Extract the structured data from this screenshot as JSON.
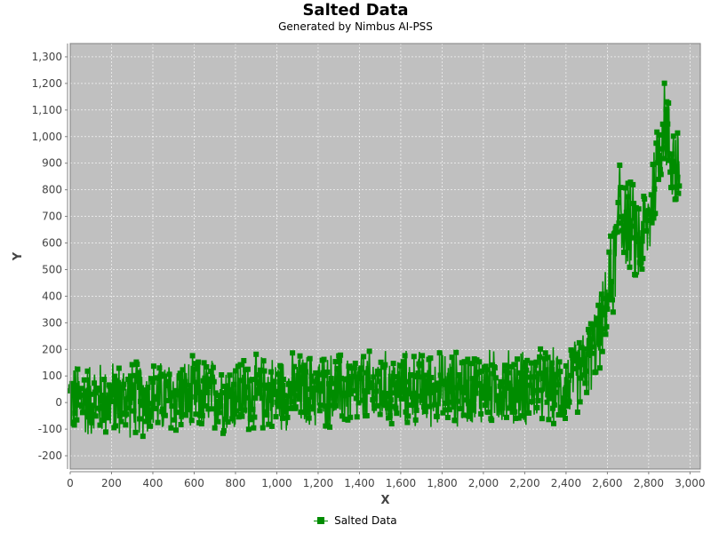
{
  "chart_data": {
    "type": "line",
    "title": "Salted Data",
    "subtitle": "Generated by Nimbus AI-PSS",
    "xlabel": "X",
    "ylabel": "Y",
    "xlim": [
      0,
      3050
    ],
    "ylim": [
      -250,
      1350
    ],
    "xticks": [
      0,
      200,
      400,
      600,
      800,
      1000,
      1200,
      1400,
      1600,
      1800,
      2000,
      2200,
      2400,
      2600,
      2800,
      3000
    ],
    "xtick_labels": [
      "0",
      "200",
      "400",
      "600",
      "800",
      "1,000",
      "1,200",
      "1,400",
      "1,600",
      "1,800",
      "2,000",
      "2,200",
      "2,400",
      "2,600",
      "2,800",
      "3,000"
    ],
    "yticks": [
      -200,
      -100,
      0,
      100,
      200,
      300,
      400,
      500,
      600,
      700,
      800,
      900,
      1000,
      1100,
      1200,
      1300
    ],
    "ytick_labels": [
      "-200",
      "-100",
      "0",
      "100",
      "200",
      "300",
      "400",
      "500",
      "600",
      "700",
      "800",
      "900",
      "1,000",
      "1,100",
      "1,200",
      "1,300"
    ],
    "grid": true,
    "legend_position": "bottom-center",
    "series": [
      {
        "name": "Salted Data",
        "color": "#008c00",
        "marker": "square",
        "trend": [
          {
            "x": 0,
            "y": 10
          },
          {
            "x": 400,
            "y": 15
          },
          {
            "x": 800,
            "y": 30
          },
          {
            "x": 1200,
            "y": 45
          },
          {
            "x": 1600,
            "y": 50
          },
          {
            "x": 2000,
            "y": 55
          },
          {
            "x": 2400,
            "y": 60
          },
          {
            "x": 2450,
            "y": 100
          },
          {
            "x": 2500,
            "y": 150
          },
          {
            "x": 2550,
            "y": 230
          },
          {
            "x": 2600,
            "y": 380
          },
          {
            "x": 2650,
            "y": 600
          },
          {
            "x": 2660,
            "y": 850
          },
          {
            "x": 2670,
            "y": 700
          },
          {
            "x": 2700,
            "y": 680
          },
          {
            "x": 2750,
            "y": 600
          },
          {
            "x": 2800,
            "y": 680
          },
          {
            "x": 2850,
            "y": 950
          },
          {
            "x": 2875,
            "y": 1080
          },
          {
            "x": 2900,
            "y": 950
          },
          {
            "x": 2950,
            "y": 850
          }
        ],
        "noise_amplitude": 160
      }
    ]
  },
  "legend": {
    "label": "Salted Data"
  },
  "colors": {
    "plot_background": "#c0c0c0",
    "grid": "#ffffff",
    "series": "#008c00"
  }
}
